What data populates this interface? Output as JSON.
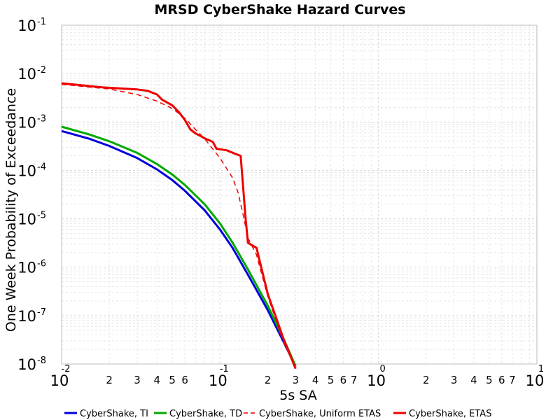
{
  "chart_data": {
    "type": "line",
    "title": "MRSD CyberShake Hazard Curves",
    "xlabel": "5s SA",
    "ylabel": "One Week Probability of Exceedance",
    "x_scale": "log",
    "y_scale": "log",
    "xlim": [
      0.01,
      10
    ],
    "ylim": [
      1e-08,
      0.1
    ],
    "grid": true,
    "legend_position": "bottom",
    "x_major_ticks": [
      {
        "value": 0.01,
        "base": "10",
        "exp": "-2"
      },
      {
        "value": 0.1,
        "base": "10",
        "exp": "-1"
      },
      {
        "value": 1,
        "base": "10",
        "exp": "0"
      },
      {
        "value": 10,
        "base": "10",
        "exp": "1"
      }
    ],
    "x_minor_labels": [
      {
        "value": 0.02,
        "label": "2"
      },
      {
        "value": 0.03,
        "label": "3"
      },
      {
        "value": 0.04,
        "label": "4"
      },
      {
        "value": 0.05,
        "label": "5"
      },
      {
        "value": 0.06,
        "label": "6"
      },
      {
        "value": 0.2,
        "label": "2"
      },
      {
        "value": 0.3,
        "label": "3"
      },
      {
        "value": 0.4,
        "label": "4"
      },
      {
        "value": 0.5,
        "label": "5"
      },
      {
        "value": 0.6,
        "label": "6"
      },
      {
        "value": 0.7,
        "label": "7"
      },
      {
        "value": 2,
        "label": "2"
      },
      {
        "value": 3,
        "label": "3"
      },
      {
        "value": 4,
        "label": "4"
      },
      {
        "value": 5,
        "label": "5"
      },
      {
        "value": 6,
        "label": "6"
      },
      {
        "value": 7,
        "label": "7"
      }
    ],
    "y_major_ticks": [
      {
        "value": 0.1,
        "base": "10",
        "exp": "-1"
      },
      {
        "value": 0.01,
        "base": "10",
        "exp": "-2"
      },
      {
        "value": 0.001,
        "base": "10",
        "exp": "-3"
      },
      {
        "value": 0.0001,
        "base": "10",
        "exp": "-4"
      },
      {
        "value": 1e-05,
        "base": "10",
        "exp": "-5"
      },
      {
        "value": 1e-06,
        "base": "10",
        "exp": "-6"
      },
      {
        "value": 1e-07,
        "base": "10",
        "exp": "-7"
      },
      {
        "value": 1e-08,
        "base": "10",
        "exp": "-8"
      }
    ],
    "series": [
      {
        "name": "CyberShake, TI",
        "color": "#0000dd",
        "style": "solid",
        "points": [
          [
            0.01,
            0.00065
          ],
          [
            0.015,
            0.00045
          ],
          [
            0.02,
            0.00032
          ],
          [
            0.03,
            0.00018
          ],
          [
            0.04,
            0.000105
          ],
          [
            0.05,
            6.3e-05
          ],
          [
            0.06,
            3.8e-05
          ],
          [
            0.08,
            1.5e-05
          ],
          [
            0.1,
            6e-06
          ],
          [
            0.12,
            2.5e-06
          ],
          [
            0.15,
            7e-07
          ],
          [
            0.2,
            1.3e-07
          ],
          [
            0.25,
            3e-08
          ],
          [
            0.3,
            9e-09
          ]
        ]
      },
      {
        "name": "CyberShake, TD",
        "color": "#00aa00",
        "style": "solid",
        "points": [
          [
            0.01,
            0.0008
          ],
          [
            0.015,
            0.00055
          ],
          [
            0.02,
            0.0004
          ],
          [
            0.03,
            0.00023
          ],
          [
            0.04,
            0.000135
          ],
          [
            0.05,
            8.2e-05
          ],
          [
            0.06,
            5e-05
          ],
          [
            0.08,
            2e-05
          ],
          [
            0.1,
            8e-06
          ],
          [
            0.12,
            3.2e-06
          ],
          [
            0.15,
            9e-07
          ],
          [
            0.2,
            1.6e-07
          ],
          [
            0.25,
            3.5e-08
          ],
          [
            0.3,
            9e-09
          ]
        ]
      },
      {
        "name": "CyberShake, Uniform ETAS",
        "color": "#ee0000",
        "style": "dashed",
        "points": [
          [
            0.01,
            0.006
          ],
          [
            0.02,
            0.0048
          ],
          [
            0.03,
            0.0037
          ],
          [
            0.04,
            0.0027
          ],
          [
            0.05,
            0.0019
          ],
          [
            0.06,
            0.0012
          ],
          [
            0.07,
            0.0007
          ],
          [
            0.08,
            0.00045
          ],
          [
            0.1,
            0.00018
          ],
          [
            0.12,
            7e-05
          ],
          [
            0.13,
            3.5e-05
          ],
          [
            0.14,
            1.2e-05
          ],
          [
            0.15,
            4e-06
          ],
          [
            0.17,
            1.8e-06
          ],
          [
            0.2,
            2.5e-07
          ],
          [
            0.25,
            3e-08
          ],
          [
            0.3,
            8e-09
          ]
        ]
      },
      {
        "name": "CyberShake, ETAS",
        "color": "#ee0000",
        "style": "solid",
        "points": [
          [
            0.01,
            0.0063
          ],
          [
            0.013,
            0.0058
          ],
          [
            0.018,
            0.0052
          ],
          [
            0.03,
            0.0047
          ],
          [
            0.035,
            0.0044
          ],
          [
            0.04,
            0.0037
          ],
          [
            0.043,
            0.0029
          ],
          [
            0.05,
            0.0022
          ],
          [
            0.055,
            0.0016
          ],
          [
            0.06,
            0.0011
          ],
          [
            0.065,
            0.0007
          ],
          [
            0.07,
            0.00058
          ],
          [
            0.08,
            0.00046
          ],
          [
            0.09,
            0.00039
          ],
          [
            0.095,
            0.00028
          ],
          [
            0.11,
            0.00026
          ],
          [
            0.125,
            0.00022
          ],
          [
            0.135,
            0.0002
          ],
          [
            0.145,
            1e-05
          ],
          [
            0.15,
            3.2e-06
          ],
          [
            0.17,
            2.5e-06
          ],
          [
            0.2,
            2.8e-07
          ],
          [
            0.25,
            3.5e-08
          ],
          [
            0.3,
            8e-09
          ]
        ]
      }
    ]
  }
}
